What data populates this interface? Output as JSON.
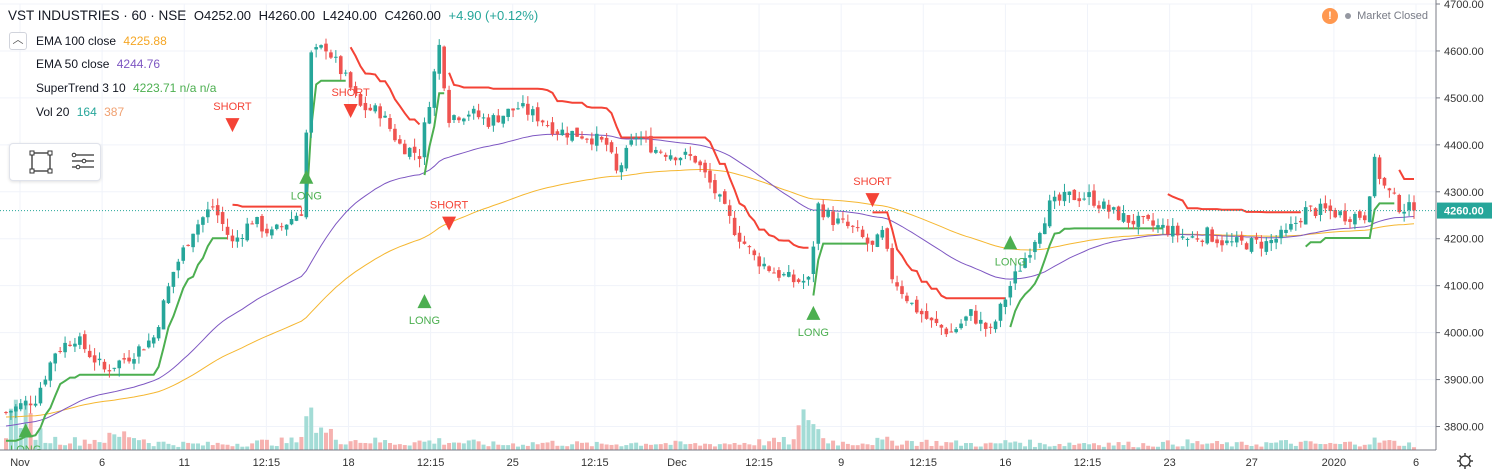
{
  "header": {
    "symbol": "VST INDUSTRIES · 60 · NSE",
    "open": "O4252.00",
    "high": "H4260.00",
    "low": "L4240.00",
    "close": "C4260.00",
    "change": "+4.90 (+0.12%)",
    "collapse_icon": "chevron-up-icon"
  },
  "indicators": [
    {
      "name": "EMA 100 close",
      "value": "4225.88",
      "color": "#f5b731"
    },
    {
      "name": "EMA 50 close",
      "value": "4244.76",
      "color": "#7e57c2"
    },
    {
      "name": "SuperTrend 3 10",
      "value": "4223.71  n/a  n/a",
      "color": "#4caf50"
    },
    {
      "name": "Vol 20",
      "value": "164",
      "value2": "387",
      "color": "#26a69a",
      "color2": "#f0a070"
    }
  ],
  "status": {
    "market": "Market Closed",
    "warning": "!"
  },
  "tools": [
    "rectangle-select-icon",
    "menu-lines-icon"
  ],
  "colors": {
    "up": "#26a69a",
    "down": "#ef5350",
    "supertrend_up": "#4caf50",
    "supertrend_down": "#f44336",
    "ema50": "#7e57c2",
    "ema100": "#f5b731",
    "last_price_bg": "#26a69a"
  },
  "chart_data": {
    "type": "candlestick",
    "y_axis": {
      "min": 3750,
      "max": 4700,
      "ticks": [
        3800,
        3900,
        4000,
        4100,
        4200,
        4300,
        4400,
        4500,
        4600,
        4700
      ],
      "tick_labels": [
        "3800.00",
        "3900.00",
        "4000.00",
        "4100.00",
        "4200.00",
        "4300.00",
        "4400.00",
        "4500.00",
        "4600.00",
        "4700.00"
      ]
    },
    "x_axis": {
      "tick_labels": [
        "Nov",
        "6",
        "11",
        "12:15",
        "18",
        "12:15",
        "25",
        "12:15",
        "Dec",
        "12:15",
        "9",
        "12:15",
        "16",
        "12:15",
        "23",
        "27",
        "2020",
        "6"
      ]
    },
    "last_price": 4260,
    "last_price_label": "4260.00",
    "signals": [
      {
        "label": "LONG",
        "type": "long",
        "price": 3790
      },
      {
        "label": "SHORT",
        "type": "short",
        "price": 4440
      },
      {
        "label": "LONG",
        "type": "long",
        "price": 4330
      },
      {
        "label": "SHORT",
        "type": "short",
        "price": 4470
      },
      {
        "label": "LONG",
        "type": "long",
        "price": 4065
      },
      {
        "label": "SHORT",
        "type": "short",
        "price": 4230
      },
      {
        "label": "LONG",
        "type": "long",
        "price": 4040
      },
      {
        "label": "SHORT",
        "type": "short",
        "price": 4280
      },
      {
        "label": "LONG",
        "type": "long",
        "price": 4190
      }
    ],
    "price_anchors": [
      [
        0,
        3830
      ],
      [
        6,
        3860
      ],
      [
        10,
        3960
      ],
      [
        14,
        3990
      ],
      [
        20,
        3920
      ],
      [
        25,
        3950
      ],
      [
        30,
        3990
      ],
      [
        34,
        4130
      ],
      [
        38,
        4220
      ],
      [
        42,
        4270
      ],
      [
        46,
        4190
      ],
      [
        50,
        4240
      ],
      [
        54,
        4210
      ],
      [
        60,
        4260
      ],
      [
        62,
        4590
      ],
      [
        65,
        4610
      ],
      [
        69,
        4540
      ],
      [
        72,
        4480
      ],
      [
        76,
        4470
      ],
      [
        80,
        4400
      ],
      [
        84,
        4380
      ],
      [
        88,
        4610
      ],
      [
        90,
        4460
      ],
      [
        94,
        4470
      ],
      [
        98,
        4450
      ],
      [
        104,
        4480
      ],
      [
        108,
        4460
      ],
      [
        112,
        4430
      ],
      [
        118,
        4420
      ],
      [
        122,
        4400
      ],
      [
        124,
        4340
      ],
      [
        128,
        4420
      ],
      [
        132,
        4390
      ],
      [
        136,
        4380
      ],
      [
        140,
        4370
      ],
      [
        144,
        4300
      ],
      [
        148,
        4220
      ],
      [
        152,
        4160
      ],
      [
        156,
        4130
      ],
      [
        160,
        4110
      ],
      [
        163,
        4110
      ],
      [
        165,
        4270
      ],
      [
        168,
        4240
      ],
      [
        172,
        4220
      ],
      [
        176,
        4180
      ],
      [
        178,
        4210
      ],
      [
        180,
        4120
      ],
      [
        184,
        4060
      ],
      [
        188,
        4020
      ],
      [
        192,
        4000
      ],
      [
        196,
        4040
      ],
      [
        200,
        4000
      ],
      [
        204,
        4100
      ],
      [
        208,
        4180
      ],
      [
        212,
        4270
      ],
      [
        216,
        4290
      ],
      [
        220,
        4290
      ],
      [
        224,
        4260
      ],
      [
        228,
        4240
      ],
      [
        232,
        4230
      ],
      [
        236,
        4220
      ],
      [
        240,
        4200
      ],
      [
        244,
        4210
      ],
      [
        248,
        4190
      ],
      [
        252,
        4190
      ],
      [
        256,
        4190
      ],
      [
        260,
        4210
      ],
      [
        264,
        4260
      ],
      [
        268,
        4260
      ],
      [
        272,
        4250
      ],
      [
        276,
        4250
      ],
      [
        278,
        4360
      ],
      [
        280,
        4310
      ],
      [
        283,
        4270
      ],
      [
        286,
        4260
      ]
    ],
    "volume_anchors": [
      [
        0,
        60
      ],
      [
        2,
        120
      ],
      [
        8,
        30
      ],
      [
        14,
        25
      ],
      [
        20,
        30
      ],
      [
        25,
        45
      ],
      [
        30,
        20
      ],
      [
        40,
        15
      ],
      [
        50,
        20
      ],
      [
        60,
        25
      ],
      [
        61,
        200
      ],
      [
        63,
        60
      ],
      [
        68,
        30
      ],
      [
        80,
        20
      ],
      [
        88,
        25
      ],
      [
        100,
        15
      ],
      [
        110,
        20
      ],
      [
        120,
        15
      ],
      [
        130,
        20
      ],
      [
        140,
        15
      ],
      [
        150,
        20
      ],
      [
        160,
        25
      ],
      [
        163,
        110
      ],
      [
        166,
        30
      ],
      [
        170,
        20
      ],
      [
        180,
        25
      ],
      [
        190,
        20
      ],
      [
        200,
        15
      ],
      [
        205,
        25
      ],
      [
        210,
        15
      ],
      [
        220,
        20
      ],
      [
        230,
        15
      ],
      [
        240,
        20
      ],
      [
        250,
        15
      ],
      [
        260,
        20
      ],
      [
        270,
        15
      ],
      [
        278,
        25
      ],
      [
        286,
        15
      ]
    ],
    "ema50": {
      "name": "EMA 50 close",
      "last": 4244.76
    },
    "ema100": {
      "name": "EMA 100 close",
      "last": 4225.88
    },
    "supertrend": {
      "name": "SuperTrend 3 10",
      "last": 4223.71
    },
    "volume": {
      "name": "Vol 20",
      "last": 164,
      "ma": 387
    }
  }
}
